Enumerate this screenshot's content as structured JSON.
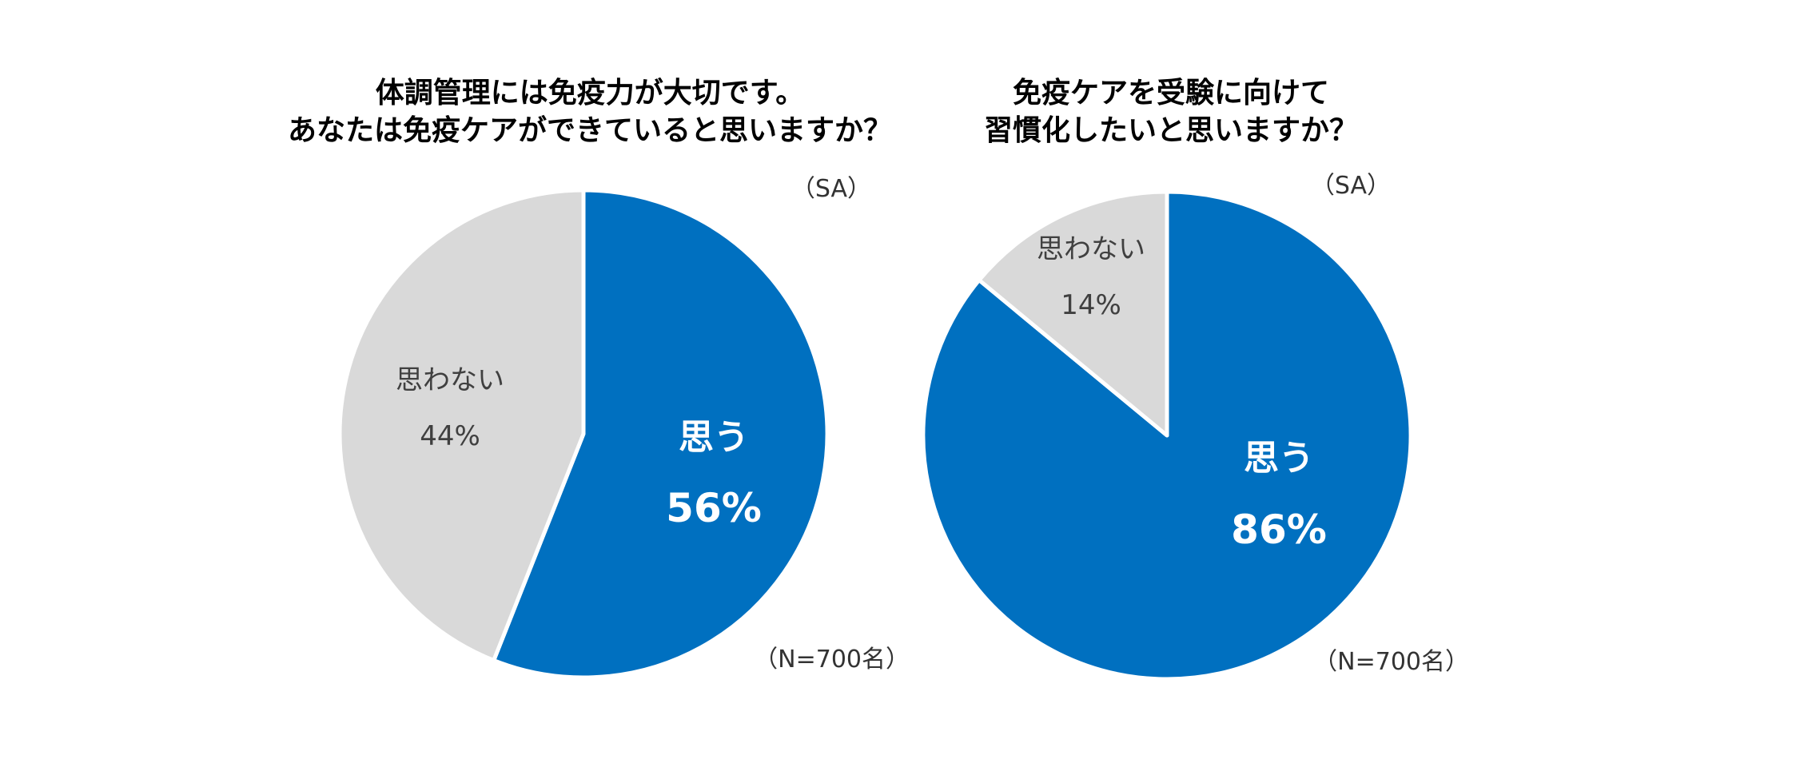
{
  "chart_data": [
    {
      "type": "pie",
      "title_lines": [
        "体調管理には免疫力が大切です。",
        "あなたは免疫ケアができていると思いますか？"
      ],
      "note": "（SA）",
      "sample": "（N=700名）",
      "slices": [
        {
          "label": "思う",
          "value": 56,
          "display": "56%",
          "color": "#0070C0",
          "text_color": "#FFFFFF"
        },
        {
          "label": "思わない",
          "value": 44,
          "display": "44%",
          "color": "#D9D9D9",
          "text_color": "#404040"
        }
      ]
    },
    {
      "type": "pie",
      "title_lines": [
        "免疫ケアを受験に向けて",
        "習慣化したいと思いますか？"
      ],
      "note": "（SA）",
      "sample": "（N=700名）",
      "slices": [
        {
          "label": "思う",
          "value": 86,
          "display": "86%",
          "color": "#0070C0",
          "text_color": "#FFFFFF"
        },
        {
          "label": "思わない",
          "value": 14,
          "display": "14%",
          "color": "#D9D9D9",
          "text_color": "#404040"
        }
      ]
    }
  ]
}
